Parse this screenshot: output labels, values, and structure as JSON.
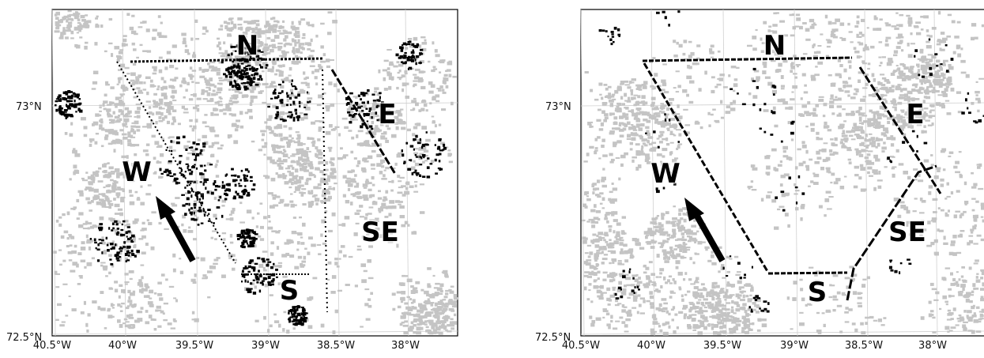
{
  "axes": {
    "y_ticks": [
      "73°N",
      "72.5°N"
    ],
    "x_ticks": [
      "40.5°W",
      "40°W",
      "39.5°W",
      "39°W",
      "38.5°W",
      "38°W"
    ]
  },
  "panels": [
    {
      "id": "left",
      "regions": [
        "N",
        "E",
        "W",
        "SE",
        "S"
      ]
    },
    {
      "id": "right",
      "regions": [
        "N",
        "E",
        "W",
        "SE",
        "S"
      ]
    }
  ],
  "colors": {
    "background": "#ffffff",
    "gray_cloud": "#c4c4c4",
    "dark_points": "#000000",
    "gridline": "#d0d0d0"
  }
}
